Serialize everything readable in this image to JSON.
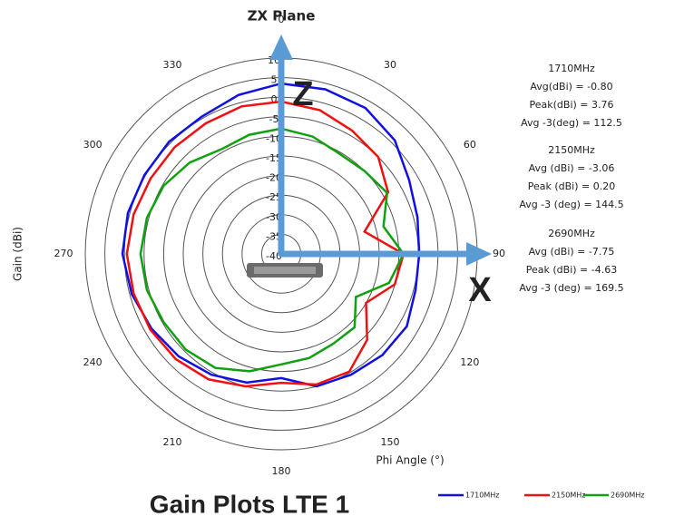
{
  "chart_data": {
    "type": "polar",
    "title": "ZX Plane",
    "x_label": "Phi Angle (°)",
    "y_label": "Gain (dBi)",
    "theta": [
      0,
      15,
      30,
      45,
      60,
      75,
      90,
      105,
      120,
      135,
      150,
      165,
      180,
      195,
      210,
      225,
      240,
      255,
      270,
      285,
      300,
      315,
      330,
      345
    ],
    "rlim": [
      -40,
      10
    ],
    "rticks": [
      -40,
      -35,
      -30,
      -25,
      -20,
      -15,
      -10,
      -5,
      0,
      5,
      10
    ],
    "angleticks": [
      0,
      30,
      60,
      90,
      120,
      150,
      180,
      210,
      240,
      270,
      300,
      330
    ],
    "series": [
      {
        "name": "1710MHz",
        "color": "#1010e0",
        "values": [
          3.5,
          3.5,
          3,
          1,
          -2.3,
          -4,
          -4.8,
          -4.5,
          -3,
          -3.5,
          -4.4,
          -5,
          -8.3,
          -6,
          -4.4,
          -3,
          -1.8,
          -0.5,
          0.5,
          0.5,
          0.3,
          0.5,
          0.5,
          2
        ]
      },
      {
        "name": "2150MHz",
        "color": "#f01010",
        "values": [
          -1.1,
          -2,
          -3.7,
          -5,
          -8.5,
          -18,
          -8.8,
          -10,
          -15,
          -9,
          -5.3,
          -5.5,
          -7.1,
          -5,
          -3,
          -2,
          -1.4,
          -1,
          -0.6,
          -1,
          -1.5,
          -1.5,
          -1.5,
          -1
        ]
      },
      {
        "name": "2690MHz",
        "color": "#10a010",
        "values": [
          -8,
          -9,
          -10.4,
          -10,
          -8.8,
          -13,
          -8.8,
          -11.5,
          -18,
          -13.5,
          -13.5,
          -12.5,
          -11.8,
          -9,
          -6.4,
          -5.5,
          -5.3,
          -4.5,
          -4.1,
          -4.5,
          -5.3,
          -7,
          -9.2,
          -8.5
        ]
      }
    ],
    "arrow_labels": [
      "Z",
      "X"
    ],
    "annotations": [
      [
        "1710MHz",
        "Avg(dBi) = -0.80",
        "Peak(dBi) = 3.76",
        "Avg -3(deg) = 112.5"
      ],
      [
        "2150MHz",
        "Avg (dBi) = -3.06",
        "Peak (dBi) = 0.20",
        "Avg -3 (deg) = 144.5"
      ],
      [
        "2690MHz",
        "Avg (dBi) = -7.75",
        "Peak (dBi) = -4.63",
        "Avg -3 (deg) = 169.5"
      ]
    ]
  },
  "caption": "Gain Plots LTE 1"
}
